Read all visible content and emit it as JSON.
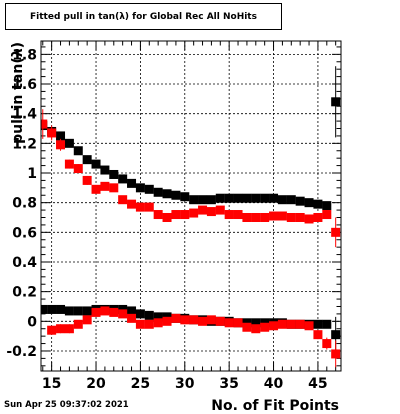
{
  "chart_data": {
    "type": "scatter",
    "title": "Fitted pull in tan(λ) for Global Rec All NoHits",
    "xlabel": "No. of Fit Points",
    "ylabel": "pull in tan(λ)",
    "xlim": [
      13.8,
      47.6
    ],
    "ylim": [
      -0.335,
      1.89
    ],
    "x_ticks": [
      15,
      20,
      25,
      30,
      35,
      40,
      45
    ],
    "y_ticks": [
      -0.2,
      0,
      0.2,
      0.4,
      0.6,
      0.8,
      1,
      1.2,
      1.4,
      1.6,
      1.8
    ],
    "grid": true,
    "series": [
      {
        "color": "#000000",
        "points": [
          {
            "x": 14,
            "y": 1.32,
            "err": 0.03
          },
          {
            "x": 15,
            "y": 1.28,
            "err": 0.02
          },
          {
            "x": 16,
            "y": 1.25,
            "err": 0.02
          },
          {
            "x": 17,
            "y": 1.2,
            "err": 0.02
          },
          {
            "x": 18,
            "y": 1.15,
            "err": 0.01
          },
          {
            "x": 19,
            "y": 1.09,
            "err": 0.01
          },
          {
            "x": 20,
            "y": 1.06,
            "err": 0.01
          },
          {
            "x": 21,
            "y": 1.02,
            "err": 0.01
          },
          {
            "x": 22,
            "y": 0.99,
            "err": 0.01
          },
          {
            "x": 23,
            "y": 0.96,
            "err": 0.01
          },
          {
            "x": 24,
            "y": 0.93,
            "err": 0.01
          },
          {
            "x": 25,
            "y": 0.9,
            "err": 0.01
          },
          {
            "x": 26,
            "y": 0.89,
            "err": 0.01
          },
          {
            "x": 27,
            "y": 0.87,
            "err": 0.01
          },
          {
            "x": 28,
            "y": 0.86,
            "err": 0.01
          },
          {
            "x": 29,
            "y": 0.85,
            "err": 0.01
          },
          {
            "x": 30,
            "y": 0.84,
            "err": 0.01
          },
          {
            "x": 31,
            "y": 0.82,
            "err": 0.01
          },
          {
            "x": 32,
            "y": 0.82,
            "err": 0.01
          },
          {
            "x": 33,
            "y": 0.82,
            "err": 0.01
          },
          {
            "x": 34,
            "y": 0.83,
            "err": 0.01
          },
          {
            "x": 35,
            "y": 0.83,
            "err": 0.01
          },
          {
            "x": 36,
            "y": 0.83,
            "err": 0.01
          },
          {
            "x": 37,
            "y": 0.83,
            "err": 0.01
          },
          {
            "x": 38,
            "y": 0.83,
            "err": 0.01
          },
          {
            "x": 39,
            "y": 0.83,
            "err": 0.01
          },
          {
            "x": 40,
            "y": 0.83,
            "err": 0.01
          },
          {
            "x": 41,
            "y": 0.82,
            "err": 0.01
          },
          {
            "x": 42,
            "y": 0.82,
            "err": 0.01
          },
          {
            "x": 43,
            "y": 0.81,
            "err": 0.01
          },
          {
            "x": 44,
            "y": 0.8,
            "err": 0.01
          },
          {
            "x": 45,
            "y": 0.79,
            "err": 0.01
          },
          {
            "x": 46,
            "y": 0.78,
            "err": 0.01
          },
          {
            "x": 47,
            "y": 1.48,
            "err": 0.24
          },
          {
            "x": 14,
            "y": 0.08,
            "err": 0.01
          },
          {
            "x": 15,
            "y": 0.08,
            "err": 0.01
          },
          {
            "x": 16,
            "y": 0.08,
            "err": 0.01
          },
          {
            "x": 17,
            "y": 0.07,
            "err": 0.01
          },
          {
            "x": 18,
            "y": 0.07,
            "err": 0.01
          },
          {
            "x": 19,
            "y": 0.07,
            "err": 0.01
          },
          {
            "x": 20,
            "y": 0.08,
            "err": 0.01
          },
          {
            "x": 21,
            "y": 0.08,
            "err": 0.01
          },
          {
            "x": 22,
            "y": 0.08,
            "err": 0.01
          },
          {
            "x": 23,
            "y": 0.08,
            "err": 0.01
          },
          {
            "x": 24,
            "y": 0.07,
            "err": 0.01
          },
          {
            "x": 25,
            "y": 0.05,
            "err": 0.01
          },
          {
            "x": 26,
            "y": 0.04,
            "err": 0.01
          },
          {
            "x": 27,
            "y": 0.03,
            "err": 0.01
          },
          {
            "x": 28,
            "y": 0.03,
            "err": 0.01
          },
          {
            "x": 29,
            "y": 0.02,
            "err": 0.01
          },
          {
            "x": 30,
            "y": 0.02,
            "err": 0.01
          },
          {
            "x": 31,
            "y": 0.01,
            "err": 0.01
          },
          {
            "x": 32,
            "y": 0.01,
            "err": 0.01
          },
          {
            "x": 33,
            "y": 0.0,
            "err": 0.01
          },
          {
            "x": 34,
            "y": 0.0,
            "err": 0.01
          },
          {
            "x": 35,
            "y": 0.0,
            "err": 0.01
          },
          {
            "x": 36,
            "y": -0.01,
            "err": 0.01
          },
          {
            "x": 37,
            "y": -0.01,
            "err": 0.01
          },
          {
            "x": 38,
            "y": -0.01,
            "err": 0.01
          },
          {
            "x": 39,
            "y": -0.01,
            "err": 0.01
          },
          {
            "x": 40,
            "y": -0.01,
            "err": 0.01
          },
          {
            "x": 41,
            "y": -0.01,
            "err": 0.01
          },
          {
            "x": 42,
            "y": -0.02,
            "err": 0.01
          },
          {
            "x": 43,
            "y": -0.02,
            "err": 0.01
          },
          {
            "x": 44,
            "y": -0.02,
            "err": 0.01
          },
          {
            "x": 45,
            "y": -0.02,
            "err": 0.01
          },
          {
            "x": 46,
            "y": -0.02,
            "err": 0.02
          },
          {
            "x": 47,
            "y": -0.09,
            "err": 0.12
          }
        ]
      },
      {
        "color": "#ff0000",
        "points": [
          {
            "x": 14,
            "y": 1.33,
            "err": 0.1
          },
          {
            "x": 15,
            "y": 1.27,
            "err": 0.05
          },
          {
            "x": 16,
            "y": 1.19,
            "err": 0.04
          },
          {
            "x": 17,
            "y": 1.06,
            "err": 0.03
          },
          {
            "x": 18,
            "y": 1.03,
            "err": 0.03
          },
          {
            "x": 19,
            "y": 0.95,
            "err": 0.03
          },
          {
            "x": 20,
            "y": 0.89,
            "err": 0.02
          },
          {
            "x": 21,
            "y": 0.91,
            "err": 0.02
          },
          {
            "x": 22,
            "y": 0.9,
            "err": 0.02
          },
          {
            "x": 23,
            "y": 0.82,
            "err": 0.02
          },
          {
            "x": 24,
            "y": 0.79,
            "err": 0.02
          },
          {
            "x": 25,
            "y": 0.77,
            "err": 0.02
          },
          {
            "x": 26,
            "y": 0.77,
            "err": 0.02
          },
          {
            "x": 27,
            "y": 0.72,
            "err": 0.02
          },
          {
            "x": 28,
            "y": 0.7,
            "err": 0.02
          },
          {
            "x": 29,
            "y": 0.72,
            "err": 0.02
          },
          {
            "x": 30,
            "y": 0.72,
            "err": 0.02
          },
          {
            "x": 31,
            "y": 0.73,
            "err": 0.02
          },
          {
            "x": 32,
            "y": 0.75,
            "err": 0.02
          },
          {
            "x": 33,
            "y": 0.74,
            "err": 0.02
          },
          {
            "x": 34,
            "y": 0.75,
            "err": 0.02
          },
          {
            "x": 35,
            "y": 0.72,
            "err": 0.02
          },
          {
            "x": 36,
            "y": 0.72,
            "err": 0.02
          },
          {
            "x": 37,
            "y": 0.7,
            "err": 0.02
          },
          {
            "x": 38,
            "y": 0.7,
            "err": 0.02
          },
          {
            "x": 39,
            "y": 0.7,
            "err": 0.02
          },
          {
            "x": 40,
            "y": 0.71,
            "err": 0.02
          },
          {
            "x": 41,
            "y": 0.71,
            "err": 0.02
          },
          {
            "x": 42,
            "y": 0.7,
            "err": 0.02
          },
          {
            "x": 43,
            "y": 0.7,
            "err": 0.02
          },
          {
            "x": 44,
            "y": 0.69,
            "err": 0.02
          },
          {
            "x": 45,
            "y": 0.7,
            "err": 0.02
          },
          {
            "x": 46,
            "y": 0.72,
            "err": 0.03
          },
          {
            "x": 47,
            "y": 0.6,
            "err": 0.1
          },
          {
            "x": 15,
            "y": -0.06,
            "err": 0.03
          },
          {
            "x": 16,
            "y": -0.05,
            "err": 0.03
          },
          {
            "x": 17,
            "y": -0.05,
            "err": 0.03
          },
          {
            "x": 18,
            "y": -0.02,
            "err": 0.02
          },
          {
            "x": 19,
            "y": 0.01,
            "err": 0.02
          },
          {
            "x": 20,
            "y": 0.06,
            "err": 0.02
          },
          {
            "x": 21,
            "y": 0.07,
            "err": 0.02
          },
          {
            "x": 22,
            "y": 0.06,
            "err": 0.02
          },
          {
            "x": 23,
            "y": 0.05,
            "err": 0.02
          },
          {
            "x": 24,
            "y": 0.02,
            "err": 0.02
          },
          {
            "x": 25,
            "y": -0.02,
            "err": 0.02
          },
          {
            "x": 26,
            "y": -0.02,
            "err": 0.02
          },
          {
            "x": 27,
            "y": -0.01,
            "err": 0.02
          },
          {
            "x": 28,
            "y": 0.0,
            "err": 0.02
          },
          {
            "x": 29,
            "y": 0.02,
            "err": 0.02
          },
          {
            "x": 30,
            "y": 0.01,
            "err": 0.02
          },
          {
            "x": 31,
            "y": 0.01,
            "err": 0.02
          },
          {
            "x": 32,
            "y": 0.0,
            "err": 0.02
          },
          {
            "x": 33,
            "y": 0.01,
            "err": 0.02
          },
          {
            "x": 34,
            "y": 0.0,
            "err": 0.02
          },
          {
            "x": 35,
            "y": -0.01,
            "err": 0.02
          },
          {
            "x": 36,
            "y": -0.01,
            "err": 0.02
          },
          {
            "x": 37,
            "y": -0.04,
            "err": 0.02
          },
          {
            "x": 38,
            "y": -0.05,
            "err": 0.02
          },
          {
            "x": 39,
            "y": -0.04,
            "err": 0.02
          },
          {
            "x": 40,
            "y": -0.03,
            "err": 0.02
          },
          {
            "x": 41,
            "y": -0.02,
            "err": 0.02
          },
          {
            "x": 42,
            "y": -0.02,
            "err": 0.02
          },
          {
            "x": 43,
            "y": -0.02,
            "err": 0.02
          },
          {
            "x": 44,
            "y": -0.03,
            "err": 0.02
          },
          {
            "x": 45,
            "y": -0.09,
            "err": 0.03
          },
          {
            "x": 46,
            "y": -0.15,
            "err": 0.04
          },
          {
            "x": 47,
            "y": -0.22,
            "err": 0.09
          }
        ]
      }
    ]
  },
  "footer": {
    "timestamp": "Sun Apr 25 09:37:02 2021"
  }
}
